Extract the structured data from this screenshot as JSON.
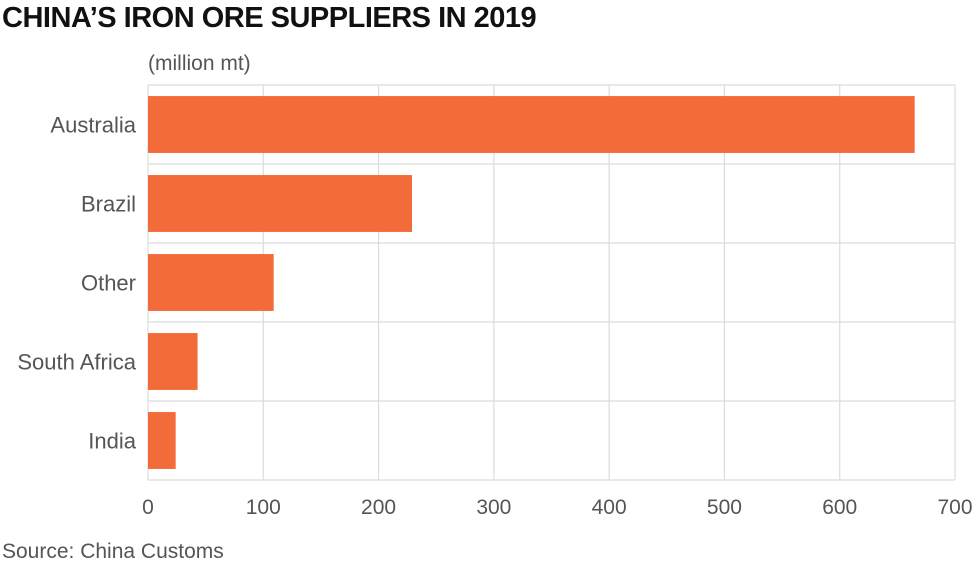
{
  "title": "CHINA’S IRON ORE SUPPLIERS IN 2019",
  "unit_label": "(million mt)",
  "source": "Source: China Customs",
  "colors": {
    "bar": "#f26b38",
    "grid": "#dcdcdc",
    "text": "#555555"
  },
  "chart_data": {
    "type": "bar",
    "orientation": "horizontal",
    "categories": [
      "Australia",
      "Brazil",
      "Other",
      "South Africa",
      "India"
    ],
    "values": [
      665,
      229,
      109,
      43,
      24
    ],
    "xticks": [
      0,
      100,
      200,
      300,
      400,
      500,
      600,
      700
    ],
    "xlim": [
      0,
      700
    ],
    "grid": true,
    "legend": "none"
  }
}
